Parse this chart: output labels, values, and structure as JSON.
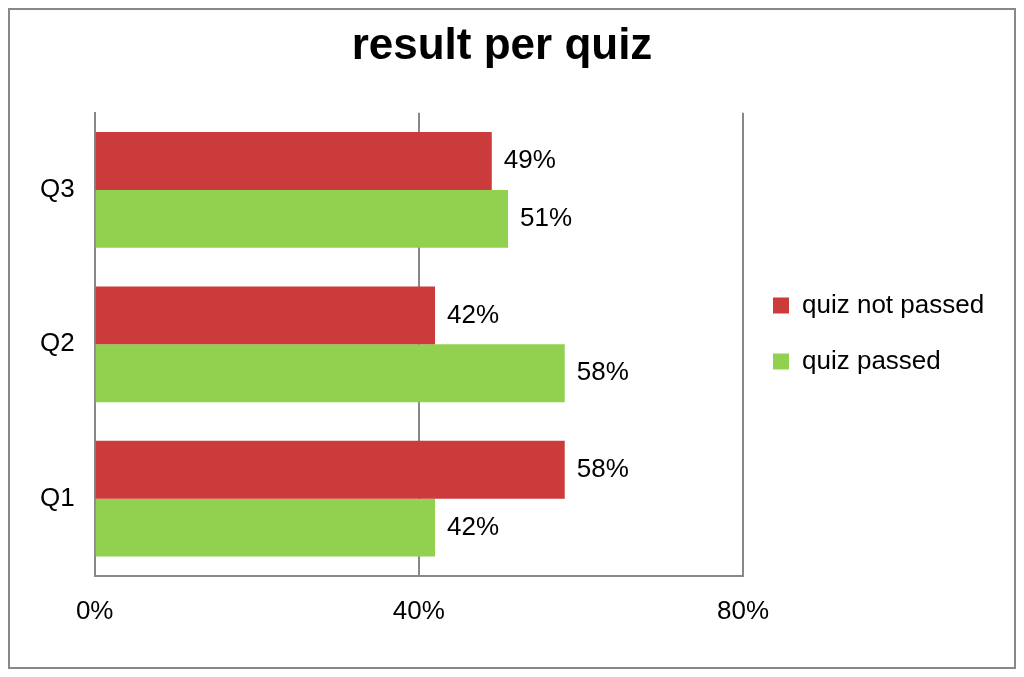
{
  "chart_data": {
    "type": "bar",
    "orientation": "horizontal",
    "title": "result per quiz",
    "categories": [
      "Q3",
      "Q2",
      "Q1"
    ],
    "series": [
      {
        "name": "quiz not passed",
        "color": "#cc3b3b",
        "values": [
          49,
          42,
          58
        ],
        "value_labels": [
          "49%",
          "42%",
          "58%"
        ]
      },
      {
        "name": "quiz passed",
        "color": "#92d050",
        "values": [
          51,
          58,
          42
        ],
        "value_labels": [
          "51%",
          "58%",
          "42%"
        ]
      }
    ],
    "xlim": [
      0,
      80
    ],
    "xticks": [
      {
        "value": 0,
        "label": "0%"
      },
      {
        "value": 40,
        "label": "40%"
      },
      {
        "value": 80,
        "label": "80%"
      }
    ],
    "grid": "x",
    "legend": "right"
  }
}
